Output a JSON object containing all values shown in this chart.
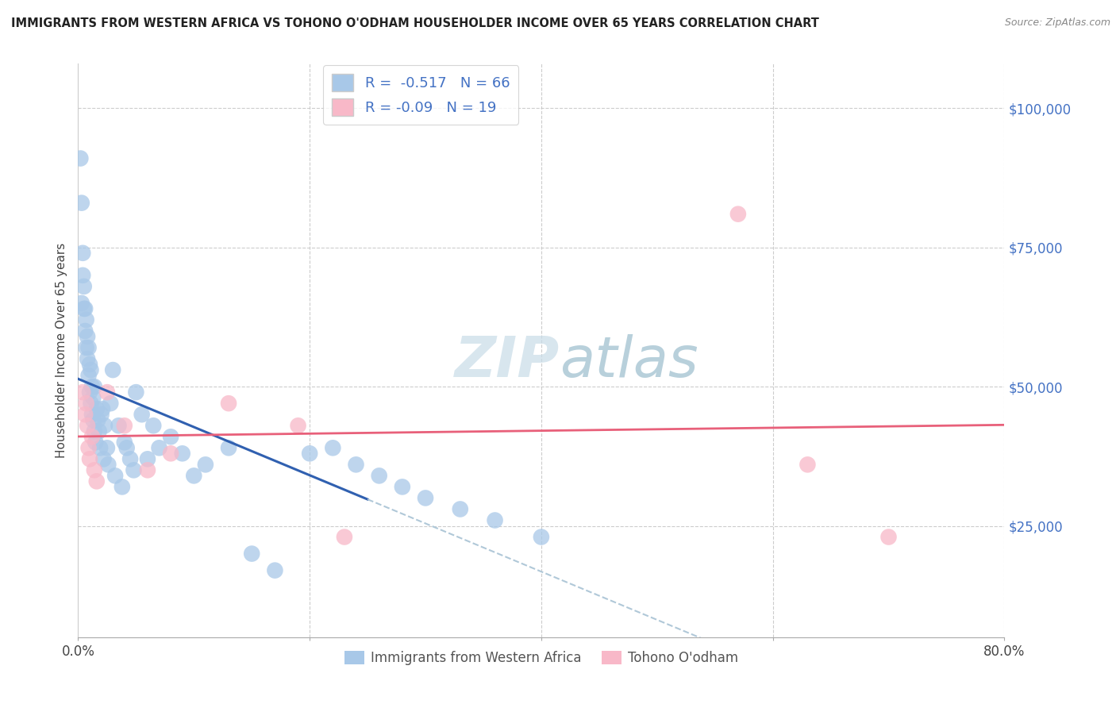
{
  "title": "IMMIGRANTS FROM WESTERN AFRICA VS TOHONO O'ODHAM HOUSEHOLDER INCOME OVER 65 YEARS CORRELATION CHART",
  "source": "Source: ZipAtlas.com",
  "ylabel": "Householder Income Over 65 years",
  "xlim": [
    0.0,
    0.8
  ],
  "ylim": [
    5000,
    108000
  ],
  "blue_R": -0.517,
  "blue_N": 66,
  "pink_R": -0.09,
  "pink_N": 19,
  "blue_color": "#a8c8e8",
  "pink_color": "#f8b8c8",
  "blue_line_color": "#3060b0",
  "pink_line_color": "#e8607a",
  "watermark_color": "#d8e8f0",
  "background_color": "#ffffff",
  "grid_color": "#cccccc",
  "blue_scatter_x": [
    0.002,
    0.003,
    0.003,
    0.004,
    0.004,
    0.005,
    0.005,
    0.006,
    0.006,
    0.007,
    0.007,
    0.008,
    0.008,
    0.009,
    0.009,
    0.01,
    0.01,
    0.011,
    0.011,
    0.012,
    0.012,
    0.013,
    0.013,
    0.014,
    0.014,
    0.015,
    0.016,
    0.017,
    0.018,
    0.019,
    0.02,
    0.021,
    0.022,
    0.023,
    0.025,
    0.026,
    0.028,
    0.03,
    0.032,
    0.035,
    0.038,
    0.04,
    0.042,
    0.045,
    0.048,
    0.05,
    0.055,
    0.06,
    0.065,
    0.07,
    0.08,
    0.09,
    0.1,
    0.11,
    0.13,
    0.15,
    0.17,
    0.2,
    0.22,
    0.24,
    0.26,
    0.28,
    0.3,
    0.33,
    0.36,
    0.4
  ],
  "blue_scatter_y": [
    91000,
    83000,
    65000,
    70000,
    74000,
    64000,
    68000,
    60000,
    64000,
    57000,
    62000,
    55000,
    59000,
    52000,
    57000,
    49000,
    54000,
    47000,
    53000,
    45000,
    50000,
    44000,
    48000,
    42000,
    50000,
    40000,
    46000,
    44000,
    42000,
    39000,
    45000,
    46000,
    37000,
    43000,
    39000,
    36000,
    47000,
    53000,
    34000,
    43000,
    32000,
    40000,
    39000,
    37000,
    35000,
    49000,
    45000,
    37000,
    43000,
    39000,
    41000,
    38000,
    34000,
    36000,
    39000,
    20000,
    17000,
    38000,
    39000,
    36000,
    34000,
    32000,
    30000,
    28000,
    26000,
    23000
  ],
  "pink_scatter_x": [
    0.004,
    0.006,
    0.007,
    0.008,
    0.009,
    0.01,
    0.012,
    0.014,
    0.016,
    0.025,
    0.04,
    0.06,
    0.08,
    0.13,
    0.19,
    0.23,
    0.57,
    0.63,
    0.7
  ],
  "pink_scatter_y": [
    49000,
    45000,
    47000,
    43000,
    39000,
    37000,
    41000,
    35000,
    33000,
    49000,
    43000,
    35000,
    38000,
    47000,
    43000,
    23000,
    81000,
    36000,
    23000
  ]
}
